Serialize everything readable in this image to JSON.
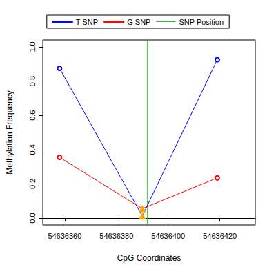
{
  "chart_data": {
    "type": "line",
    "xlabel": "CpG Coordinates",
    "ylabel": "Methylation Frequency",
    "x": [
      54636358,
      54636390,
      54636419
    ],
    "series": [
      {
        "name": "T SNP",
        "color": "#0000ff",
        "marker": "open_circle",
        "values": [
          0.875,
          0.012,
          0.925
        ]
      },
      {
        "name": "G SNP",
        "color": "#ff0000",
        "marker": "open_circle",
        "values": [
          0.355,
          0.055,
          0.235
        ]
      }
    ],
    "vlines": [
      {
        "name": "SNP Position",
        "x": 54636392,
        "color": "#00cc00"
      }
    ],
    "xlim": [
      54636351.5,
      54636433.7
    ],
    "xticks": [
      54636360,
      54636380,
      54636400,
      54636420
    ],
    "ylim": [
      -0.04,
      1.04
    ],
    "yticks": [
      {
        "value": 0,
        "label": "0.0"
      },
      {
        "value": 0.2,
        "label": "0.2"
      },
      {
        "value": 0.4,
        "label": "0.4"
      },
      {
        "value": 0.6,
        "label": "0.6"
      },
      {
        "value": 0.8,
        "label": "0.8"
      },
      {
        "value": 1,
        "label": "1.0"
      }
    ],
    "grid": false,
    "legend": "top"
  }
}
